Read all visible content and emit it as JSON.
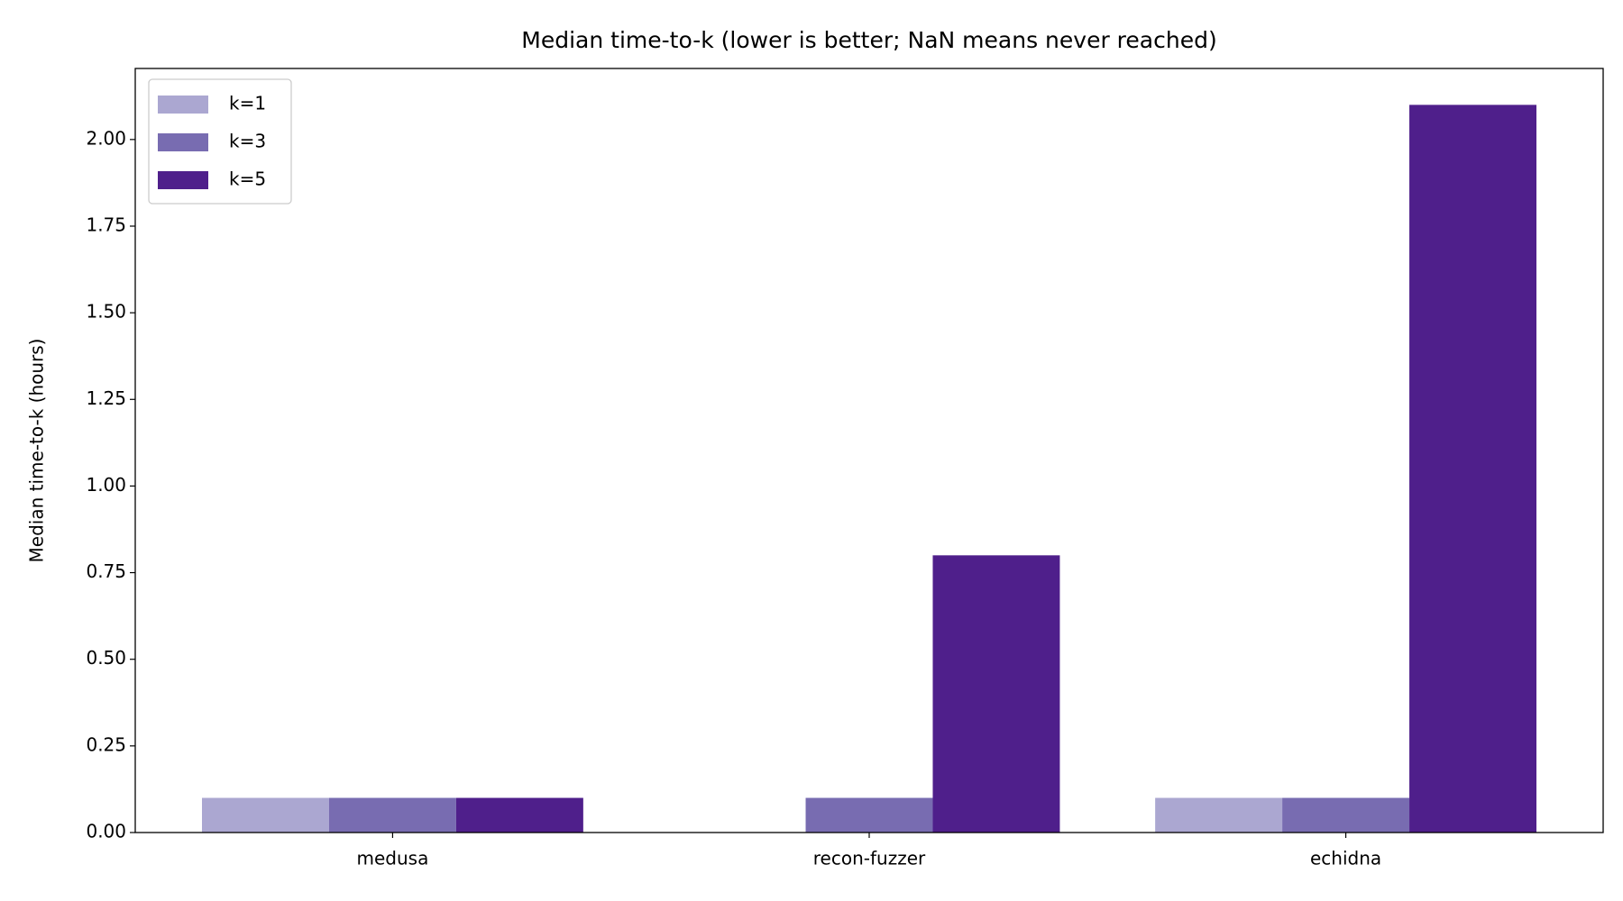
{
  "chart_data": {
    "type": "bar",
    "title": "Median time-to-k (lower is better; NaN means never reached)",
    "y_label": "Median time-to-k (hours)",
    "categories": [
      "medusa",
      "recon-fuzzer",
      "echidna"
    ],
    "series": [
      {
        "name": "k=1",
        "color": "#aba7d1",
        "values": [
          0.1,
          null,
          0.1
        ]
      },
      {
        "name": "k=3",
        "color": "#786cb1",
        "values": [
          0.1,
          0.1,
          0.1
        ]
      },
      {
        "name": "k=5",
        "color": "#4f1f8b",
        "values": [
          0.1,
          0.8,
          2.1
        ]
      }
    ],
    "ylim": [
      0,
      2.205
    ],
    "yticks": [
      {
        "value": 0,
        "label": "0.00"
      },
      {
        "value": 0.25,
        "label": "0.25"
      },
      {
        "value": 0.5,
        "label": "0.50"
      },
      {
        "value": 0.75,
        "label": "0.75"
      },
      {
        "value": 1,
        "label": "1.00"
      },
      {
        "value": 1.25,
        "label": "1.25"
      },
      {
        "value": 1.5,
        "label": "1.50"
      },
      {
        "value": 1.75,
        "label": "1.75"
      },
      {
        "value": 2,
        "label": "2.00"
      }
    ],
    "grid": false,
    "legend": "upper-left"
  }
}
